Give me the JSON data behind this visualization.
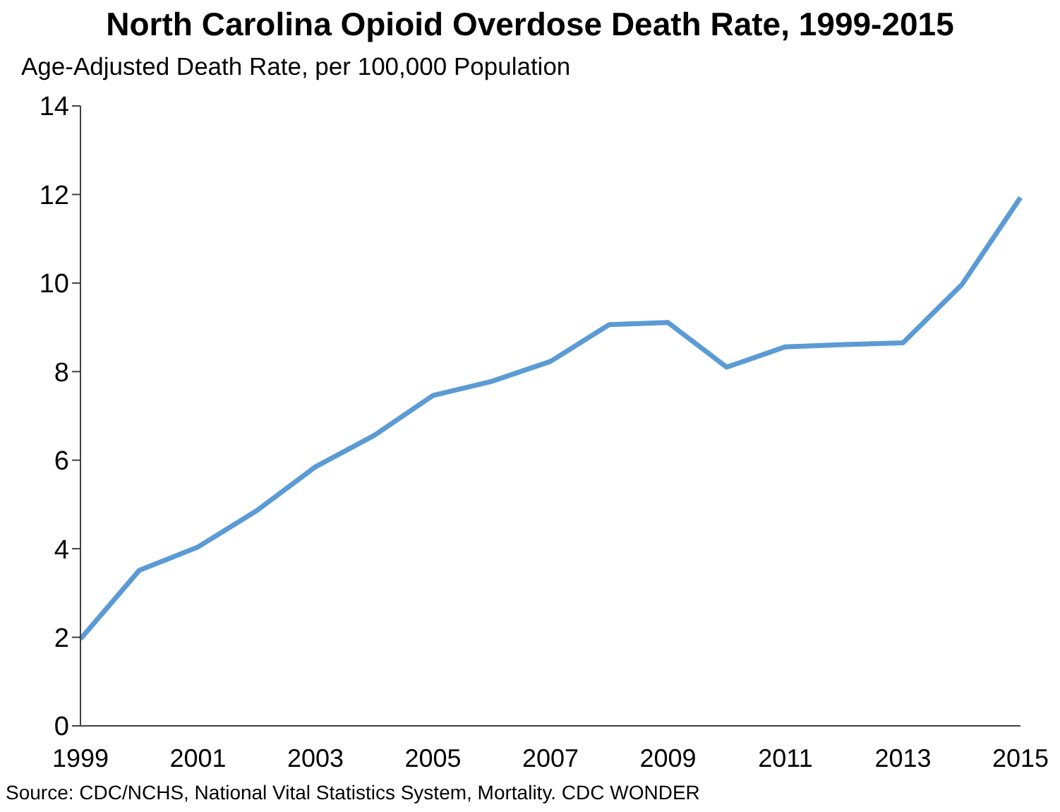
{
  "chart_data": {
    "type": "line",
    "title": "North Carolina Opioid Overdose Death Rate, 1999-2015",
    "ylabel": "Age-Adjusted Death Rate, per 100,000 Population",
    "categories": [
      "1999",
      null,
      "2001",
      null,
      "2003",
      null,
      "2005",
      null,
      "2007",
      null,
      "2009",
      null,
      "2011",
      null,
      "2013",
      null,
      "2015"
    ],
    "series": [
      {
        "color": "#5b9bd5",
        "values": [
          1.96,
          3.51,
          4.04,
          4.86,
          5.85,
          6.56,
          7.46,
          7.78,
          8.23,
          9.06,
          9.11,
          8.1,
          8.56,
          8.61,
          8.65,
          9.96,
          11.93
        ]
      }
    ],
    "ylim": [
      0,
      14
    ],
    "yticks": [
      0,
      2,
      4,
      6,
      8,
      10,
      12,
      14
    ],
    "grid": false,
    "marker": "none",
    "line_style": "solid",
    "annotations": [
      "Source:  CDC/NCHS, National Vital Statistics System, Mortality. CDC WONDER"
    ]
  }
}
